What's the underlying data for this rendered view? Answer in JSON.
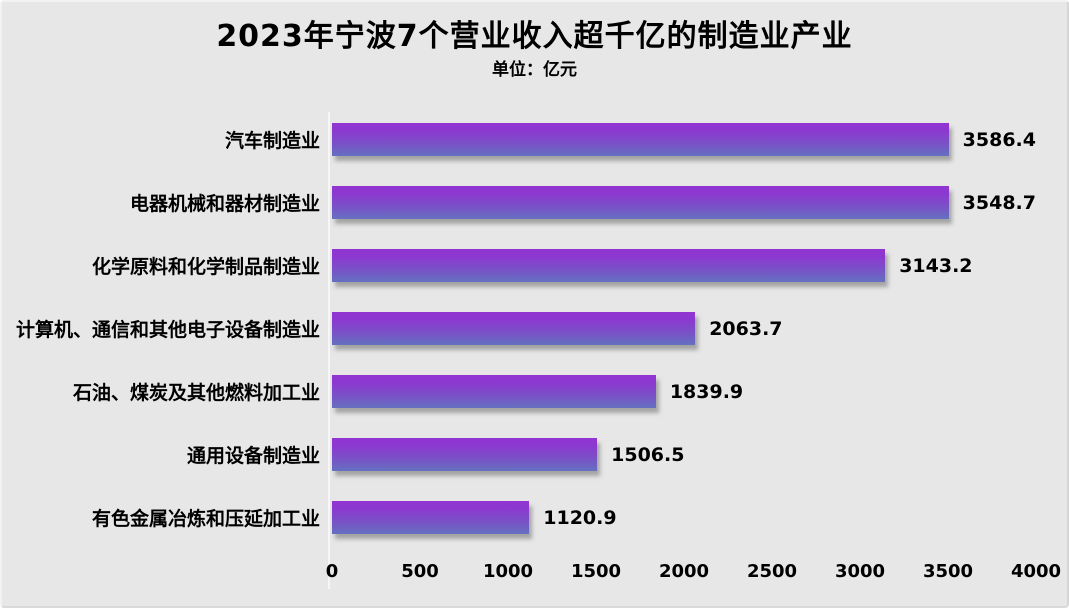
{
  "page": {
    "title": "2023年宁波7个营业收入超千亿的制造业产业",
    "unit_label": "单位：亿元"
  },
  "chart_data": {
    "type": "bar",
    "orientation": "horizontal",
    "title": "2023年宁波7个营业收入超千亿的制造业产业",
    "subtitle": "单位：亿元",
    "xlabel": "",
    "ylabel": "",
    "categories": [
      "汽车制造业",
      "电器机械和器材制造业",
      "化学原料和化学制品制造业",
      "计算机、通信和其他电子设备制造业",
      "石油、煤炭及其他燃料加工业",
      "通用设备制造业",
      "有色金属冶炼和压延加工业"
    ],
    "values": [
      3586.4,
      3548.7,
      3143.2,
      2063.7,
      1839.9,
      1506.5,
      1120.9
    ],
    "value_labels": [
      "3586.4",
      "3548.7",
      "3143.2",
      "2063.7",
      "1839.9",
      "1506.5",
      "1120.9"
    ],
    "xlim": [
      0,
      4000
    ],
    "x_ticks": [
      0,
      500,
      1000,
      1500,
      2000,
      2500,
      3000,
      3500,
      4000
    ],
    "grid": false,
    "legend": false,
    "colors": {
      "background": "#e7e7e7",
      "bar_gradient_top": "#9134d2",
      "bar_gradient_bottom": "#6570c0",
      "text": "#000000",
      "axis_line": "#f6f6f6"
    }
  }
}
